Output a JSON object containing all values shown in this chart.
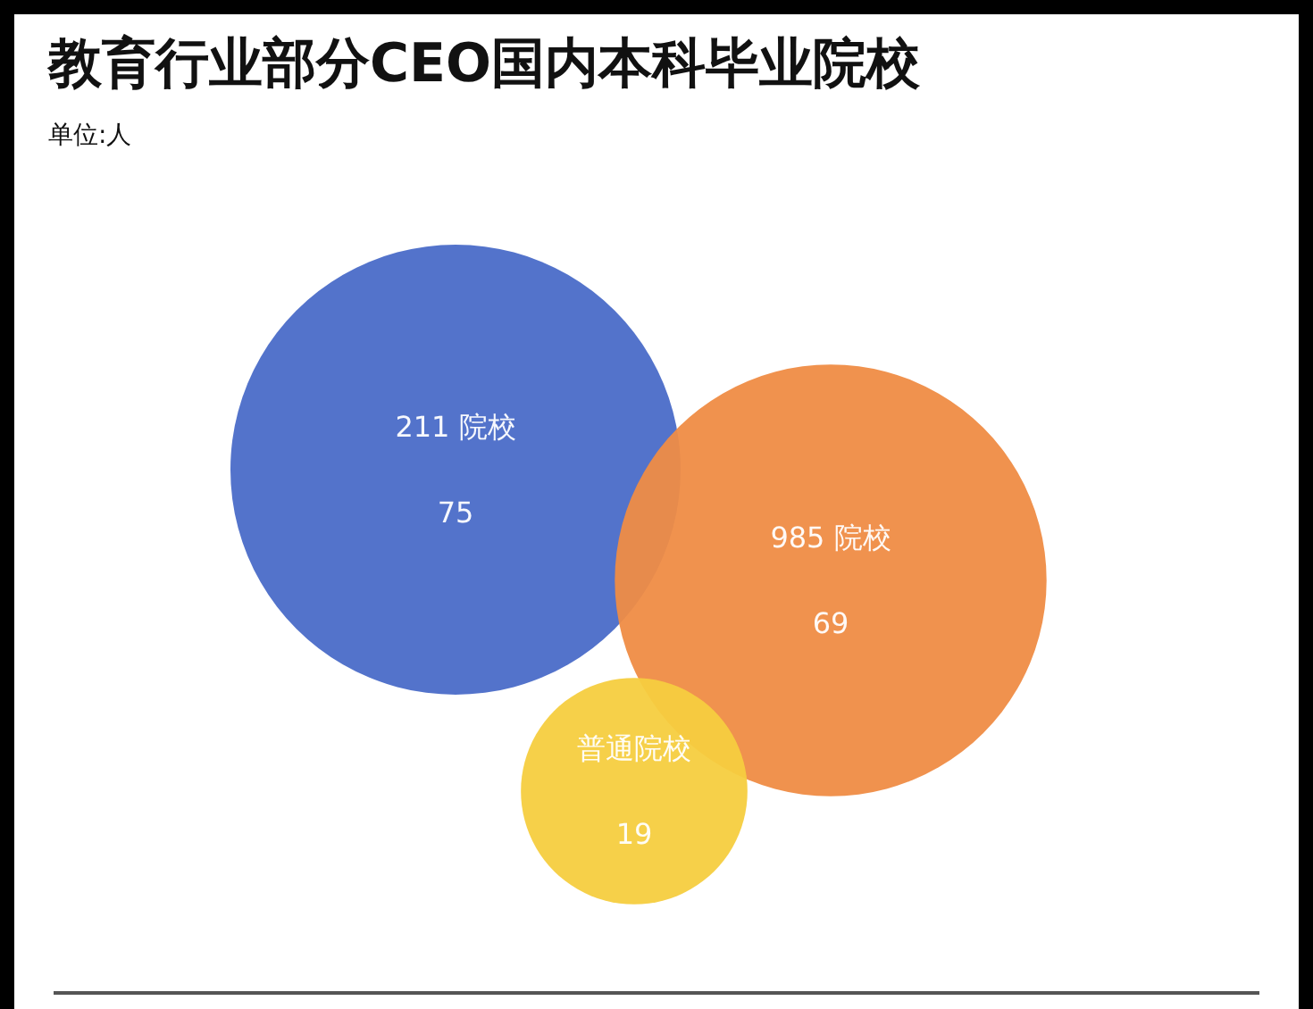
{
  "chart_data": {
    "type": "other",
    "title": "教育行业部分CEO国内本科毕业院校",
    "subtitle": "单位:人",
    "categories": [
      "211 院校",
      "985 院校",
      "普通院校"
    ],
    "values": [
      75,
      69,
      19
    ],
    "colors": [
      "#4a6bc8",
      "#ef8c45",
      "#f6cd3f"
    ],
    "data_labels": true
  }
}
